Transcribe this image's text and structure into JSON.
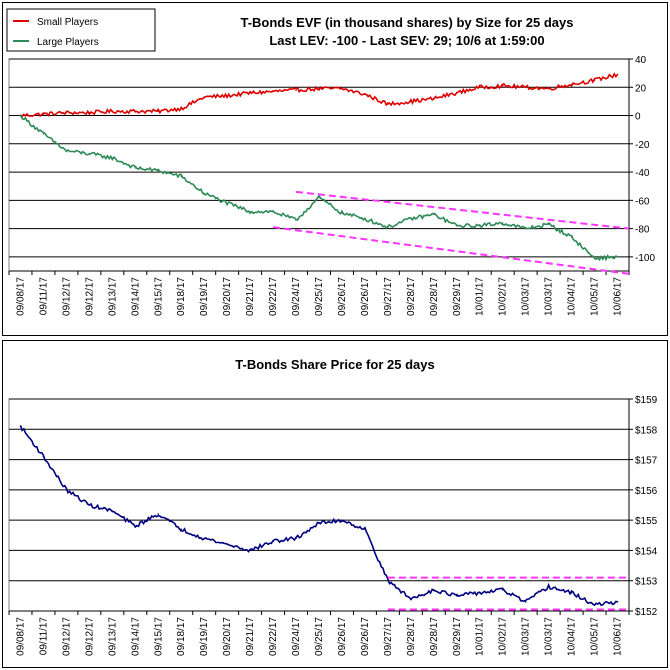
{
  "chart_data": [
    {
      "type": "line",
      "title": "T-Bonds EVF (in thousand shares) by Size for 25 days",
      "subtitle": "Last LEV: -100 - Last SEV: 29; 10/6 at 1:59:00",
      "xlabel": "",
      "ylabel": "",
      "categories": [
        "09/08/17",
        "09/11/17",
        "09/12/17",
        "09/12/17",
        "09/13/17",
        "09/14/17",
        "09/15/17",
        "09/18/17",
        "09/19/17",
        "09/20/17",
        "09/21/17",
        "09/22/17",
        "09/24/17",
        "09/25/17",
        "09/26/17",
        "09/26/17",
        "09/27/17",
        "09/28/17",
        "09/28/17",
        "09/29/17",
        "10/01/17",
        "10/02/17",
        "10/03/17",
        "10/03/17",
        "10/04/17",
        "10/05/17",
        "10/06/17"
      ],
      "ylim": [
        -110,
        40
      ],
      "y_ticks": [
        "-100",
        "-80",
        "-60",
        "-40",
        "-20",
        "0",
        "20",
        "40"
      ],
      "y_axis_side": "right",
      "grid": true,
      "legend_position": "top-left",
      "series": [
        {
          "name": "Small Players",
          "color": "#dd0000",
          "values": [
            0,
            1,
            2,
            2,
            3,
            3,
            3,
            5,
            13,
            14,
            16,
            17,
            18,
            19,
            19,
            15,
            8,
            10,
            12,
            16,
            20,
            21,
            20,
            19,
            22,
            25,
            29
          ]
        },
        {
          "name": "Large Players",
          "color": "#2e8b57",
          "values": [
            0,
            -13,
            -25,
            -27,
            -30,
            -37,
            -39,
            -43,
            -55,
            -62,
            -68,
            -68,
            -74,
            -58,
            -69,
            -73,
            -79,
            -73,
            -70,
            -78,
            -78,
            -76,
            -80,
            -77,
            -86,
            -101,
            -100
          ]
        }
      ],
      "trendlines": [
        {
          "color": "#ff33ff",
          "from": [
            "09/24/17",
            -54
          ],
          "to": [
            "10/06/17",
            -80
          ]
        },
        {
          "color": "#ff33ff",
          "from": [
            "09/22/17",
            -79
          ],
          "to": [
            "10/06/17",
            -112
          ]
        }
      ]
    },
    {
      "type": "line",
      "title": "T-Bonds Share Price for 25 days",
      "xlabel": "",
      "ylabel": "",
      "categories": [
        "09/08/17",
        "09/11/17",
        "09/12/17",
        "09/12/17",
        "09/13/17",
        "09/14/17",
        "09/15/17",
        "09/18/17",
        "09/19/17",
        "09/20/17",
        "09/21/17",
        "09/22/17",
        "09/24/17",
        "09/25/17",
        "09/26/17",
        "09/26/17",
        "09/27/17",
        "09/28/17",
        "09/28/17",
        "09/29/17",
        "10/01/17",
        "10/02/17",
        "10/03/17",
        "10/03/17",
        "10/04/17",
        "10/05/17",
        "10/06/17"
      ],
      "ylim": [
        152,
        159
      ],
      "y_ticks": [
        "$152",
        "$153",
        "$154",
        "$155",
        "$156",
        "$157",
        "$158",
        "$159"
      ],
      "y_axis_side": "right",
      "grid": true,
      "series": [
        {
          "color": "#000080",
          "values": [
            158.1,
            157.1,
            156.0,
            155.5,
            155.3,
            154.8,
            155.2,
            154.7,
            154.4,
            154.2,
            154.0,
            154.3,
            154.4,
            154.9,
            155.0,
            154.7,
            153.0,
            152.4,
            152.7,
            152.5,
            152.6,
            152.7,
            152.3,
            152.8,
            152.6,
            152.2,
            152.3
          ]
        }
      ],
      "trendlines": [
        {
          "color": "#ff33ff",
          "from": [
            "09/27/17",
            153.1
          ],
          "to": [
            "10/06/17",
            153.1
          ]
        },
        {
          "color": "#ff33ff",
          "from": [
            "09/27/17",
            152.05
          ],
          "to": [
            "10/06/17",
            152.05
          ]
        }
      ]
    }
  ]
}
